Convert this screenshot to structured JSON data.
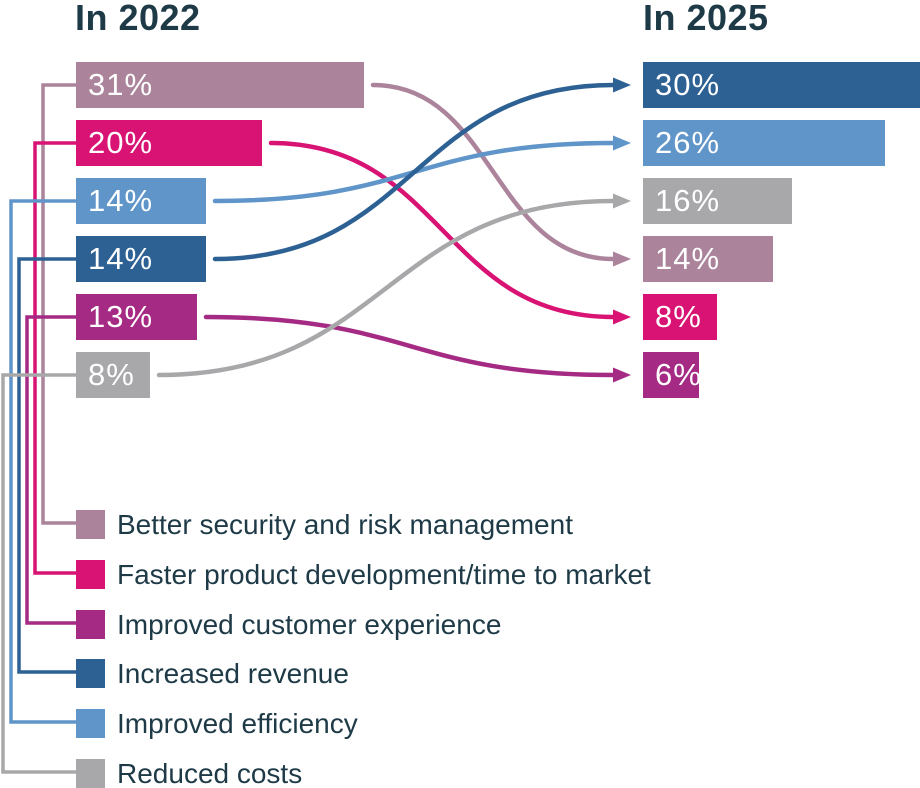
{
  "page_background": "#ffffff",
  "text_color": "#1e3a47",
  "chart_data": {
    "type": "bar",
    "subtype": "paired-horizontal-bars-with-flow-arrows",
    "value_suffix": "%",
    "columns": [
      {
        "key": "2022",
        "title": "In 2022"
      },
      {
        "key": "2025",
        "title": "In 2025"
      }
    ],
    "series": [
      {
        "id": "security",
        "label": "Better security and risk management",
        "color": "#ab849b",
        "values": {
          "2022": 31,
          "2025": 14
        }
      },
      {
        "id": "product",
        "label": "Faster product development/time to market",
        "color": "#d81374",
        "values": {
          "2022": 20,
          "2025": 8
        }
      },
      {
        "id": "customer",
        "label": "Improved customer experience",
        "color": "#a52a84",
        "values": {
          "2022": 13,
          "2025": 6
        }
      },
      {
        "id": "revenue",
        "label": "Increased revenue",
        "color": "#2d6194",
        "values": {
          "2022": 14,
          "2025": 30
        }
      },
      {
        "id": "efficiency",
        "label": "Improved efficiency",
        "color": "#6095c9",
        "values": {
          "2022": 14,
          "2025": 26
        }
      },
      {
        "id": "costs",
        "label": "Reduced costs",
        "color": "#a8a8aa",
        "values": {
          "2022": 8,
          "2025": 16
        }
      }
    ],
    "order_2022": [
      "security",
      "product",
      "efficiency",
      "revenue",
      "customer",
      "costs"
    ],
    "order_2025": [
      "revenue",
      "efficiency",
      "costs",
      "security",
      "product",
      "customer"
    ],
    "legend_order": [
      "security",
      "product",
      "customer",
      "revenue",
      "efficiency",
      "costs"
    ],
    "legend_position": "bottom-left",
    "grid": false
  }
}
